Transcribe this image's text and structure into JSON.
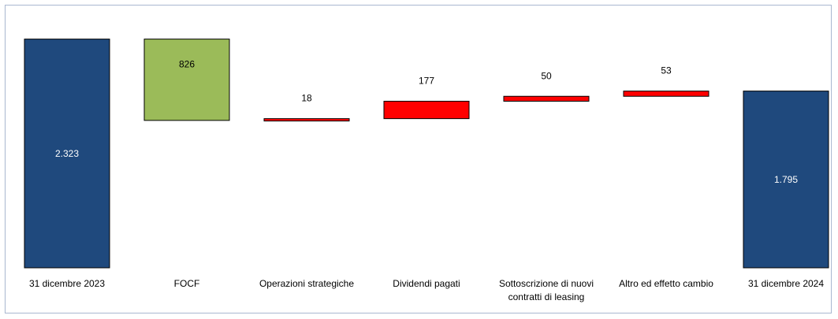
{
  "chart_data": {
    "type": "bar",
    "subtype": "waterfall",
    "title": "",
    "xlabel": "",
    "ylabel": "",
    "grid": false,
    "legend": "none",
    "ylim": [
      0,
      2400
    ],
    "categories": [
      {
        "label": "31 dicembre 2023",
        "lines": [
          "31 dicembre 2023"
        ]
      },
      {
        "label": "FOCF",
        "lines": [
          "FOCF"
        ]
      },
      {
        "label": "Operazioni strategiche",
        "lines": [
          "Operazioni strategiche"
        ]
      },
      {
        "label": "Dividendi pagati",
        "lines": [
          "Dividendi pagati"
        ]
      },
      {
        "label": "Sottoscrizione di nuovi contratti di leasing",
        "lines": [
          "Sottoscrizione di nuovi",
          "contratti di leasing"
        ]
      },
      {
        "label": "Altro ed effetto cambio",
        "lines": [
          "Altro ed effetto cambio"
        ]
      },
      {
        "label": "31 dicembre 2024",
        "lines": [
          "31 dicembre 2024"
        ]
      }
    ],
    "bars": [
      {
        "kind": "total",
        "start": 0,
        "end": 2323,
        "value_label": "2.323"
      },
      {
        "kind": "decrease",
        "start": 2323,
        "end": 1497,
        "value_label": "826"
      },
      {
        "kind": "increase",
        "start": 1497,
        "end": 1515,
        "value_label": "18"
      },
      {
        "kind": "increase",
        "start": 1515,
        "end": 1692,
        "value_label": "177"
      },
      {
        "kind": "increase",
        "start": 1692,
        "end": 1742,
        "value_label": "50"
      },
      {
        "kind": "increase",
        "start": 1742,
        "end": 1795,
        "value_label": "53"
      },
      {
        "kind": "total",
        "start": 0,
        "end": 1795,
        "value_label": "1.795"
      }
    ],
    "colors": {
      "total": "#1f497d",
      "decrease": "#9bbb59",
      "increase": "#ff0000",
      "total_label": "#ffffff",
      "other_label": "#000000"
    }
  }
}
